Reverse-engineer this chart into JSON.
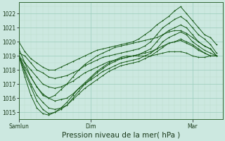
{
  "bg_color": "#cce8e0",
  "plot_bg": "#cce8e0",
  "grid_major_color": "#99ccbb",
  "grid_minor_color": "#bbddcc",
  "line_color": "#1a5c1a",
  "xlabel": "Pression niveau de la mer( hPa )",
  "xlabel_fontsize": 7.5,
  "ylim": [
    1014.5,
    1022.8
  ],
  "yticks": [
    1015,
    1016,
    1017,
    1018,
    1019,
    1020,
    1021,
    1022
  ],
  "xtick_labels": [
    "Samlun",
    "Dim",
    "Mar"
  ],
  "xtick_positions": [
    0,
    12,
    29
  ],
  "xlim": [
    0,
    34
  ],
  "series": [
    [
      1020.0,
      1019.3,
      1018.8,
      1018.5,
      1018.2,
      1018.0,
      1018.0,
      1018.2,
      1018.4,
      1018.6,
      1018.8,
      1019.0,
      1019.2,
      1019.4,
      1019.5,
      1019.6,
      1019.7,
      1019.8,
      1019.9,
      1020.0,
      1020.2,
      1020.5,
      1020.8,
      1021.2,
      1021.5,
      1021.8,
      1022.2,
      1022.5,
      1022.0,
      1021.5,
      1021.0,
      1020.5,
      1020.3,
      1019.8
    ],
    [
      1019.2,
      1019.0,
      1018.5,
      1018.0,
      1017.8,
      1017.5,
      1017.4,
      1017.5,
      1017.6,
      1017.8,
      1018.0,
      1018.3,
      1018.5,
      1018.7,
      1018.9,
      1019.0,
      1019.1,
      1019.2,
      1019.3,
      1019.4,
      1019.5,
      1019.7,
      1020.0,
      1020.5,
      1021.0,
      1021.3,
      1021.6,
      1021.8,
      1021.5,
      1021.0,
      1020.5,
      1020.2,
      1019.8,
      1019.2
    ],
    [
      1019.0,
      1018.5,
      1018.0,
      1017.5,
      1017.0,
      1016.8,
      1016.7,
      1016.8,
      1017.0,
      1017.2,
      1017.5,
      1017.8,
      1018.0,
      1018.2,
      1018.4,
      1018.6,
      1018.7,
      1018.8,
      1018.9,
      1019.0,
      1019.1,
      1019.3,
      1019.5,
      1020.0,
      1020.5,
      1020.8,
      1021.0,
      1021.2,
      1021.0,
      1020.5,
      1020.0,
      1019.7,
      1019.5,
      1019.0
    ],
    [
      1019.0,
      1018.2,
      1017.5,
      1016.8,
      1016.3,
      1016.0,
      1015.8,
      1015.9,
      1016.0,
      1016.3,
      1016.7,
      1017.0,
      1017.3,
      1017.6,
      1017.9,
      1018.1,
      1018.3,
      1018.5,
      1018.6,
      1018.7,
      1018.8,
      1019.0,
      1019.2,
      1019.5,
      1020.0,
      1020.3,
      1020.5,
      1020.7,
      1020.5,
      1020.0,
      1019.7,
      1019.4,
      1019.2,
      1019.0
    ],
    [
      1019.0,
      1018.0,
      1017.0,
      1016.2,
      1015.7,
      1015.3,
      1015.2,
      1015.3,
      1015.5,
      1015.9,
      1016.3,
      1016.7,
      1017.0,
      1017.3,
      1017.6,
      1017.9,
      1018.1,
      1018.3,
      1018.4,
      1018.5,
      1018.6,
      1018.8,
      1019.0,
      1019.3,
      1019.6,
      1019.9,
      1020.0,
      1020.2,
      1020.0,
      1019.8,
      1019.5,
      1019.2,
      1019.0,
      1019.0
    ],
    [
      1019.0,
      1017.8,
      1016.8,
      1015.8,
      1015.2,
      1014.9,
      1015.0,
      1015.2,
      1015.5,
      1016.0,
      1016.5,
      1017.0,
      1017.4,
      1017.8,
      1018.1,
      1018.4,
      1018.6,
      1018.8,
      1018.9,
      1019.0,
      1019.1,
      1019.2,
      1019.3,
      1019.5,
      1019.7,
      1019.9,
      1020.0,
      1020.1,
      1019.9,
      1019.7,
      1019.4,
      1019.2,
      1019.0,
      1019.0
    ],
    [
      1019.0,
      1017.5,
      1016.2,
      1015.3,
      1014.9,
      1014.8,
      1015.0,
      1015.3,
      1015.7,
      1016.2,
      1016.7,
      1017.1,
      1017.5,
      1017.9,
      1018.2,
      1018.5,
      1018.7,
      1018.9,
      1019.0,
      1019.0,
      1019.0,
      1019.0,
      1019.0,
      1019.1,
      1019.2,
      1019.3,
      1019.3,
      1019.3,
      1019.2,
      1019.0,
      1018.9,
      1018.9,
      1019.0,
      1019.0
    ],
    [
      1019.5,
      1018.5,
      1017.5,
      1016.8,
      1016.2,
      1016.0,
      1016.2,
      1016.6,
      1017.0,
      1017.5,
      1018.0,
      1018.4,
      1018.7,
      1019.0,
      1019.2,
      1019.4,
      1019.6,
      1019.7,
      1019.8,
      1019.9,
      1020.0,
      1020.1,
      1020.2,
      1020.3,
      1020.5,
      1020.7,
      1020.8,
      1020.8,
      1020.6,
      1020.3,
      1020.0,
      1019.7,
      1019.5,
      1019.0
    ]
  ]
}
